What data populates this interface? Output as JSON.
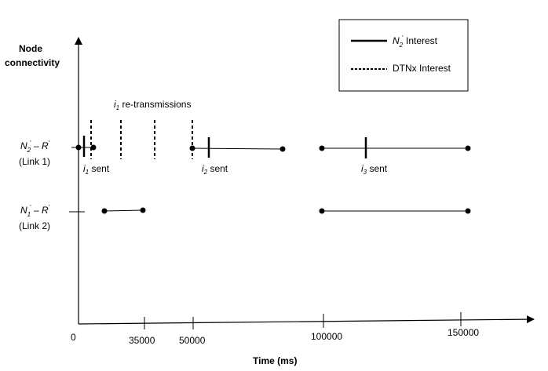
{
  "yaxis_title_line1": "Node",
  "yaxis_title_line2": "connectivity",
  "xaxis_title": "Time (ms)",
  "legend": {
    "solid": {
      "prefix": "N",
      "sub": "2",
      "sup": "'",
      "suffix": " Interest"
    },
    "dashed": {
      "text": "DTNx Interest"
    }
  },
  "retransmission_label": {
    "var": "i",
    "sub": "1",
    "text": " re-transmissions"
  },
  "link1": {
    "name": {
      "n": "N",
      "n_sub": "2",
      "n_sup": "'",
      "dash": " – ",
      "r": "R",
      "r_sup": "'"
    },
    "caption": "(Link 1)",
    "sent_labels": [
      {
        "var": "i",
        "sub": "1",
        "text": " sent"
      },
      {
        "var": "i",
        "sub": "2",
        "text": " sent"
      },
      {
        "var": "i",
        "sub": "3",
        "text": " sent"
      }
    ]
  },
  "link2": {
    "name": {
      "n": "N",
      "n_sub": "1",
      "n_sup": "'",
      "dash": " – ",
      "r": "R",
      "r_sup": "'"
    },
    "caption": "(Link 2)"
  },
  "ticks": [
    "0",
    "35000",
    "50000",
    "100000",
    "150000"
  ]
}
